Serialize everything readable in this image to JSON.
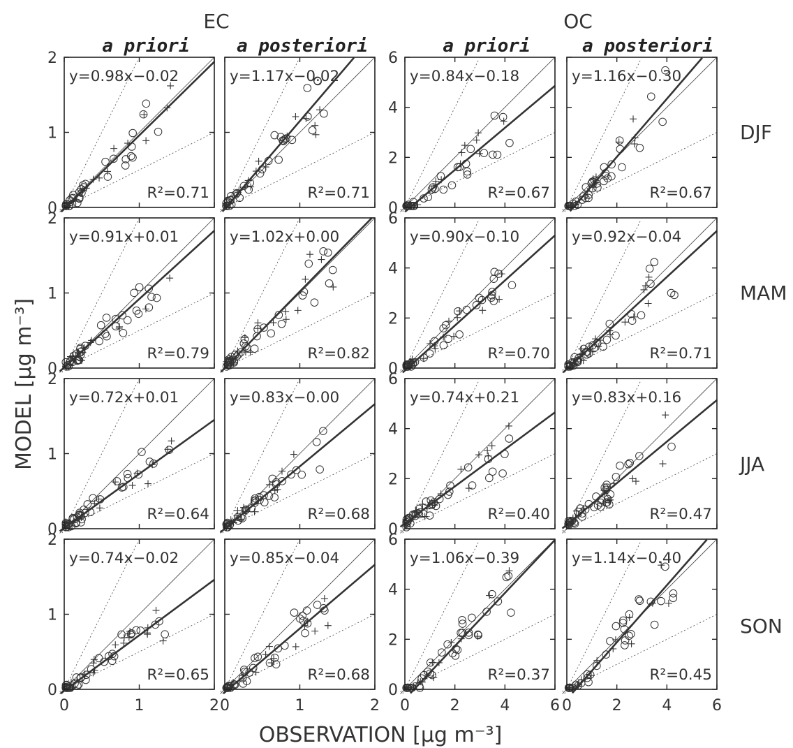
{
  "chart_data": {
    "type": "scatter",
    "layout": "4x4 panel grid",
    "group_labels": [
      "EC",
      "OC"
    ],
    "column_labels": [
      "a priori",
      "a posteriori",
      "a priori",
      "a posteriori"
    ],
    "row_labels": [
      "DJF",
      "MAM",
      "JJA",
      "SON"
    ],
    "xlabel": "OBSERVATION [μg m⁻³]",
    "ylabel": "MODEL [μg m⁻³]",
    "ec_axis": {
      "range": [
        0,
        2
      ],
      "ticks": [
        0,
        1,
        2
      ]
    },
    "oc_axis": {
      "range": [
        0,
        6
      ],
      "ticks": [
        0,
        2,
        4,
        6
      ]
    },
    "reference_lines": [
      "1:1",
      "2:1",
      "1:2"
    ],
    "markers": [
      "open-circle",
      "plus"
    ],
    "panels": [
      {
        "species": "EC",
        "variant": "a priori",
        "season": "DJF",
        "equation": "y=0.98x−0.02",
        "r2": "R²=0.71",
        "slope": 0.98,
        "intercept": -0.02
      },
      {
        "species": "EC",
        "variant": "a posteriori",
        "season": "DJF",
        "equation": "y=1.17x−0.02",
        "r2": "R²=0.71",
        "slope": 1.17,
        "intercept": -0.02
      },
      {
        "species": "OC",
        "variant": "a priori",
        "season": "DJF",
        "equation": "y=0.84x−0.18",
        "r2": "R²=0.67",
        "slope": 0.84,
        "intercept": -0.18
      },
      {
        "species": "OC",
        "variant": "a posteriori",
        "season": "DJF",
        "equation": "y=1.16x−0.30",
        "r2": "R²=0.67",
        "slope": 1.16,
        "intercept": -0.3
      },
      {
        "species": "EC",
        "variant": "a priori",
        "season": "MAM",
        "equation": "y=0.91x+0.01",
        "r2": "R²=0.79",
        "slope": 0.91,
        "intercept": 0.01
      },
      {
        "species": "EC",
        "variant": "a posteriori",
        "season": "MAM",
        "equation": "y=1.02x+0.00",
        "r2": "R²=0.82",
        "slope": 1.02,
        "intercept": 0.0
      },
      {
        "species": "OC",
        "variant": "a priori",
        "season": "MAM",
        "equation": "y=0.90x−0.10",
        "r2": "R²=0.70",
        "slope": 0.9,
        "intercept": -0.1
      },
      {
        "species": "OC",
        "variant": "a posteriori",
        "season": "MAM",
        "equation": "y=0.92x−0.04",
        "r2": "R²=0.71",
        "slope": 0.92,
        "intercept": -0.04
      },
      {
        "species": "EC",
        "variant": "a priori",
        "season": "JJA",
        "equation": "y=0.72x+0.01",
        "r2": "R²=0.64",
        "slope": 0.72,
        "intercept": 0.01
      },
      {
        "species": "EC",
        "variant": "a posteriori",
        "season": "JJA",
        "equation": "y=0.83x−0.00",
        "r2": "R²=0.68",
        "slope": 0.83,
        "intercept": 0.0
      },
      {
        "species": "OC",
        "variant": "a priori",
        "season": "JJA",
        "equation": "y=0.74x+0.21",
        "r2": "R²=0.40",
        "slope": 0.74,
        "intercept": 0.21
      },
      {
        "species": "OC",
        "variant": "a posteriori",
        "season": "JJA",
        "equation": "y=0.83x+0.16",
        "r2": "R²=0.47",
        "slope": 0.83,
        "intercept": 0.16
      },
      {
        "species": "EC",
        "variant": "a priori",
        "season": "SON",
        "equation": "y=0.74x−0.02",
        "r2": "R²=0.65",
        "slope": 0.74,
        "intercept": -0.02
      },
      {
        "species": "EC",
        "variant": "a posteriori",
        "season": "SON",
        "equation": "y=0.85x−0.04",
        "r2": "R²=0.68",
        "slope": 0.85,
        "intercept": -0.04
      },
      {
        "species": "OC",
        "variant": "a priori",
        "season": "SON",
        "equation": "y=1.06x−0.39",
        "r2": "R²=0.37",
        "slope": 1.06,
        "intercept": -0.39
      },
      {
        "species": "OC",
        "variant": "a posteriori",
        "season": "SON",
        "equation": "y=1.14x−0.40",
        "r2": "R²=0.45",
        "slope": 1.14,
        "intercept": -0.4
      }
    ]
  }
}
